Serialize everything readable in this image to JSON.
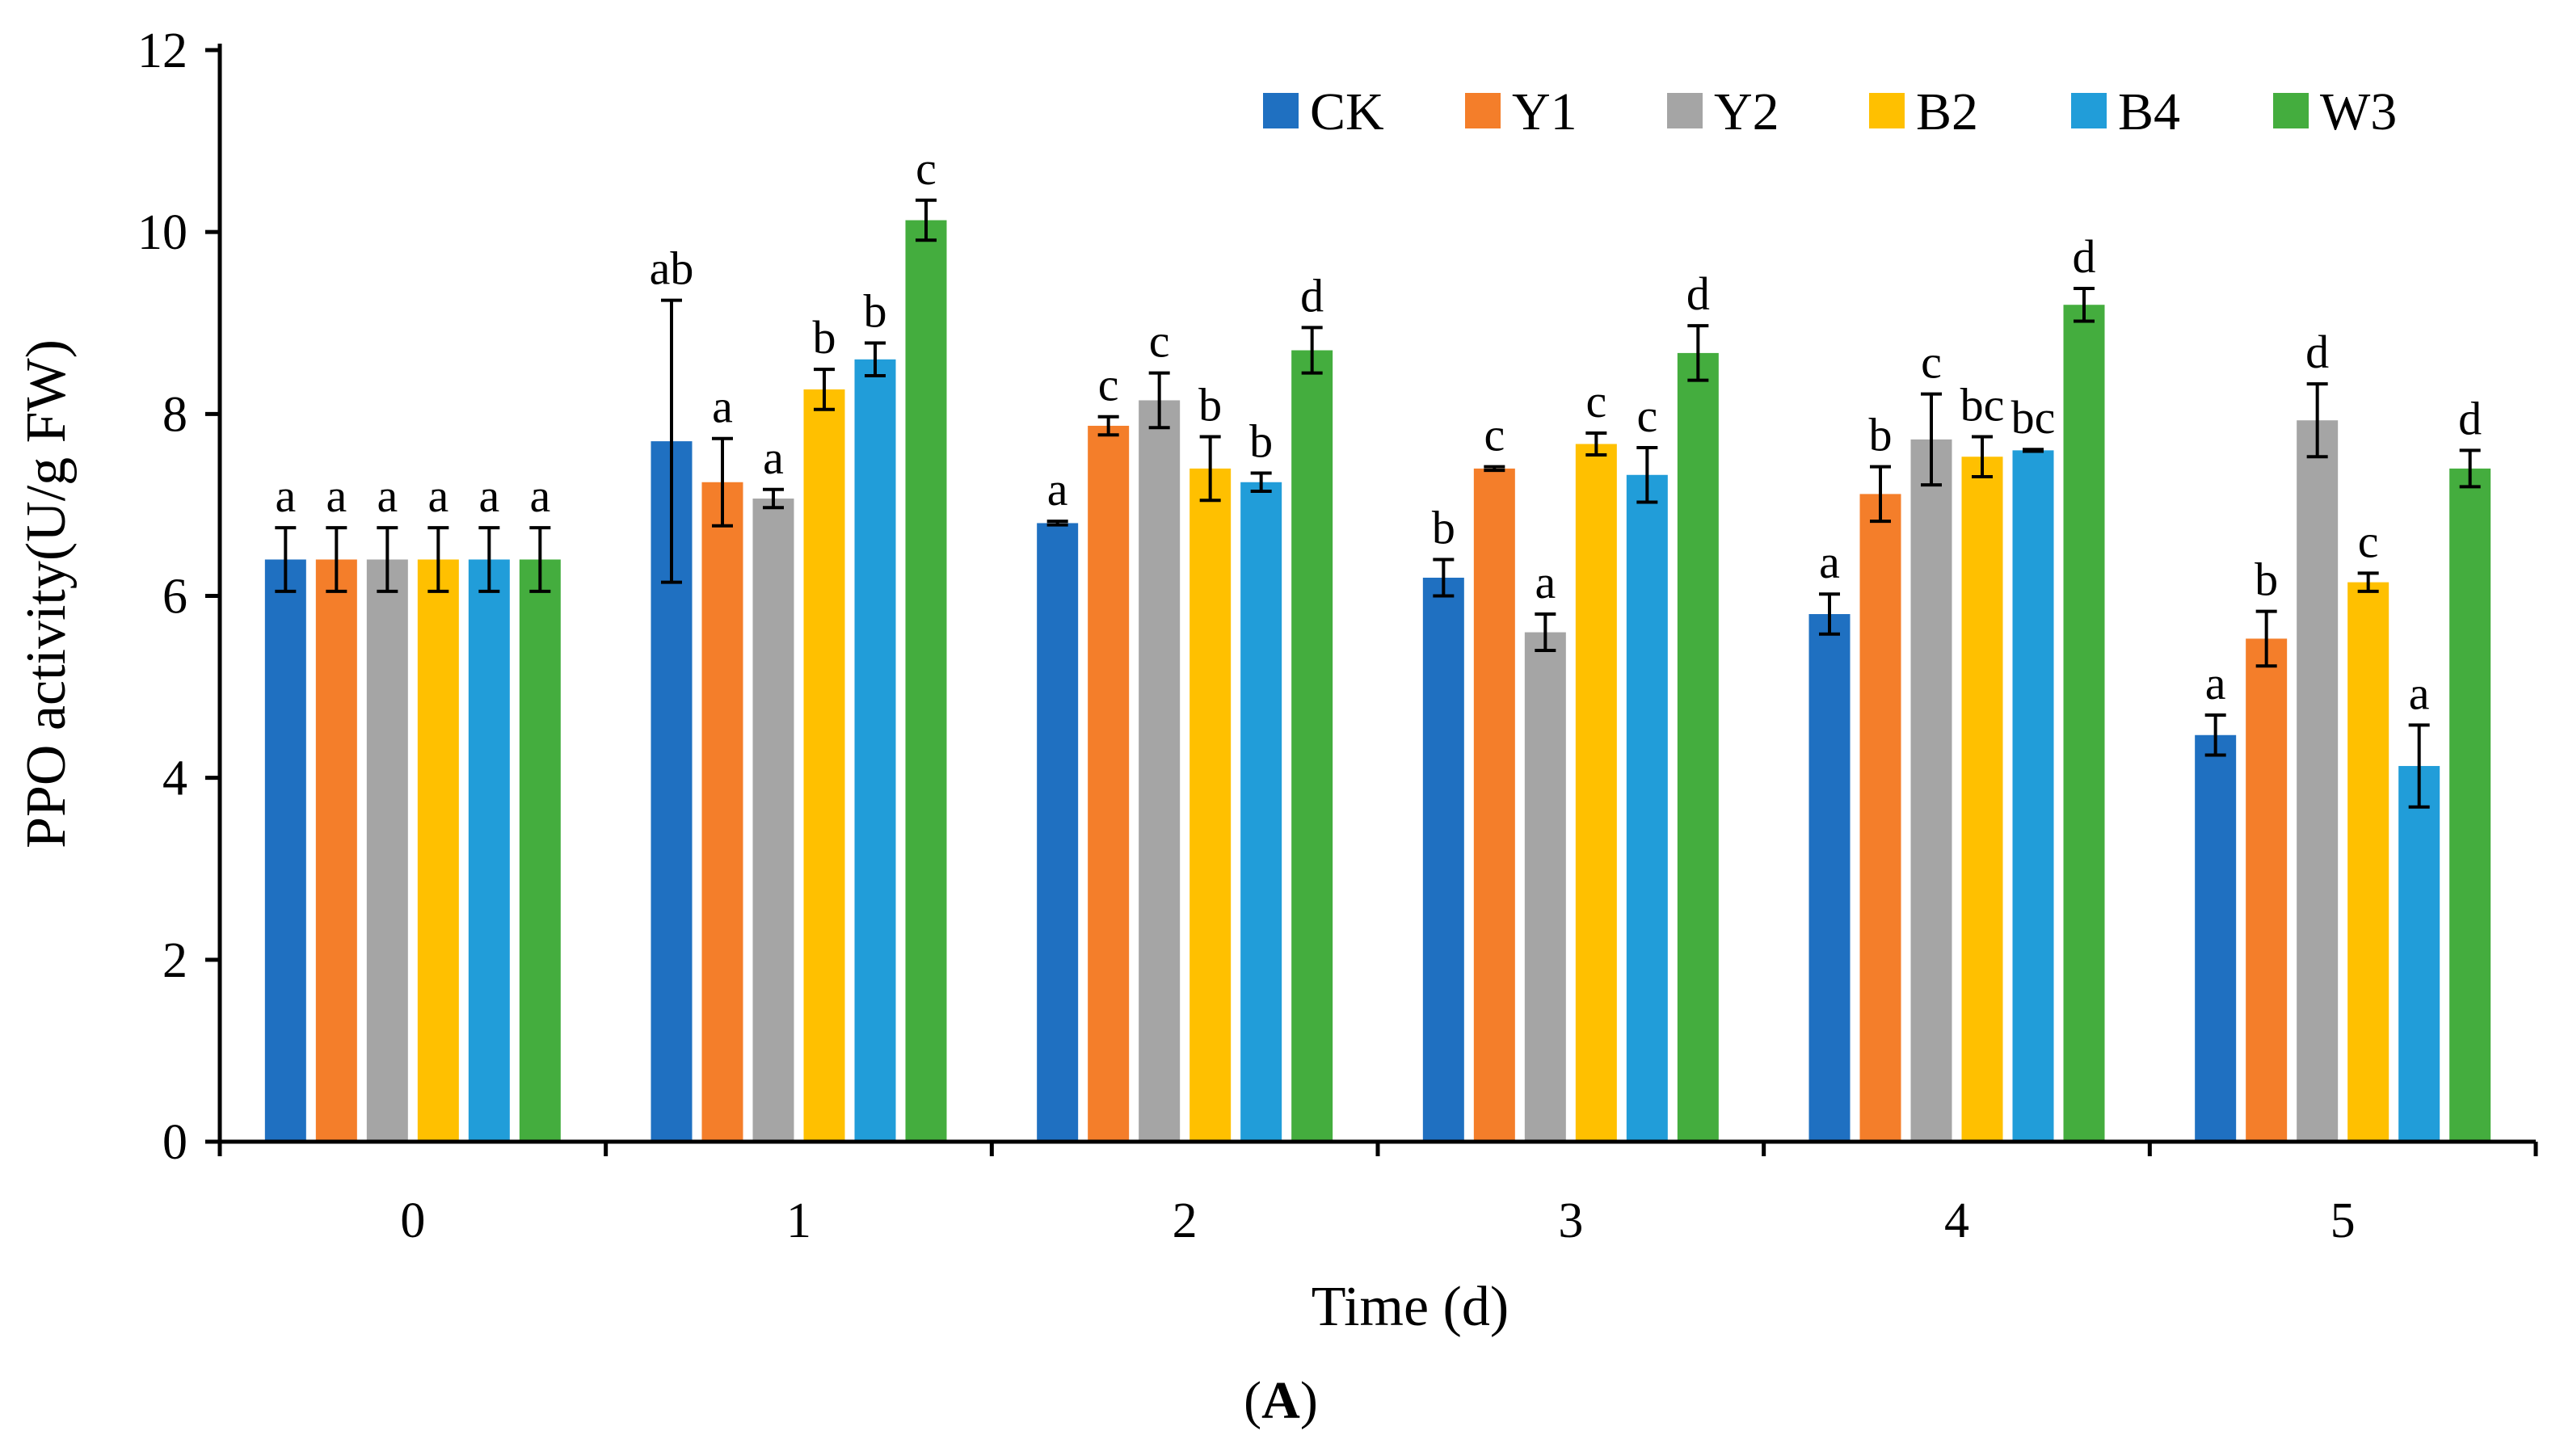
{
  "chart_data": {
    "type": "bar",
    "xlabel": "Time (d)",
    "ylabel": "PPO activity(U/g FW)",
    "panel_label_paren_open": "(",
    "panel_label": "A",
    "panel_label_paren_close": ")",
    "ylim": [
      0,
      12
    ],
    "yticks": [
      "0",
      "2",
      "4",
      "6",
      "8",
      "10",
      "12"
    ],
    "categories": [
      "0",
      "1",
      "2",
      "3",
      "4",
      "5"
    ],
    "legend_position": "top-right",
    "error_bars": true,
    "series": [
      {
        "name": "CK",
        "color": "#1F70C1",
        "values": [
          6.4,
          7.7,
          6.8,
          6.2,
          5.8,
          4.47
        ],
        "errors": [
          0.35,
          1.55,
          0.02,
          0.2,
          0.22,
          0.22
        ],
        "labels": [
          "a",
          "ab",
          "a",
          "b",
          "a",
          "a"
        ]
      },
      {
        "name": "Y1",
        "color": "#F47E2A",
        "values": [
          6.4,
          7.25,
          7.87,
          7.4,
          7.12,
          5.53
        ],
        "errors": [
          0.35,
          0.48,
          0.1,
          0.02,
          0.3,
          0.3
        ],
        "labels": [
          "a",
          "a",
          "c",
          "c",
          "b",
          "b"
        ]
      },
      {
        "name": "Y2",
        "color": "#A5A5A5",
        "values": [
          6.4,
          7.07,
          8.15,
          5.6,
          7.72,
          7.93
        ],
        "errors": [
          0.35,
          0.1,
          0.3,
          0.2,
          0.5,
          0.4
        ],
        "labels": [
          "a",
          "a",
          "c",
          "a",
          "c",
          "d"
        ]
      },
      {
        "name": "B2",
        "color": "#FFC000",
        "values": [
          6.4,
          8.27,
          7.4,
          7.67,
          7.53,
          6.15
        ],
        "errors": [
          0.35,
          0.22,
          0.35,
          0.12,
          0.22,
          0.1
        ],
        "labels": [
          "a",
          "b",
          "b",
          "c",
          "bc",
          "c"
        ]
      },
      {
        "name": "B4",
        "color": "#219DD9",
        "values": [
          6.4,
          8.6,
          7.25,
          7.33,
          7.6,
          4.13
        ],
        "errors": [
          0.35,
          0.18,
          0.1,
          0.3,
          0.01,
          0.45
        ],
        "labels": [
          "a",
          "b",
          "b",
          "c",
          "bc",
          "a"
        ]
      },
      {
        "name": "W3",
        "color": "#44AD3E",
        "values": [
          6.4,
          10.13,
          8.7,
          8.67,
          9.2,
          7.4
        ],
        "errors": [
          0.35,
          0.22,
          0.25,
          0.3,
          0.18,
          0.2
        ],
        "labels": [
          "a",
          "c",
          "d",
          "d",
          "d",
          "d"
        ]
      }
    ]
  }
}
